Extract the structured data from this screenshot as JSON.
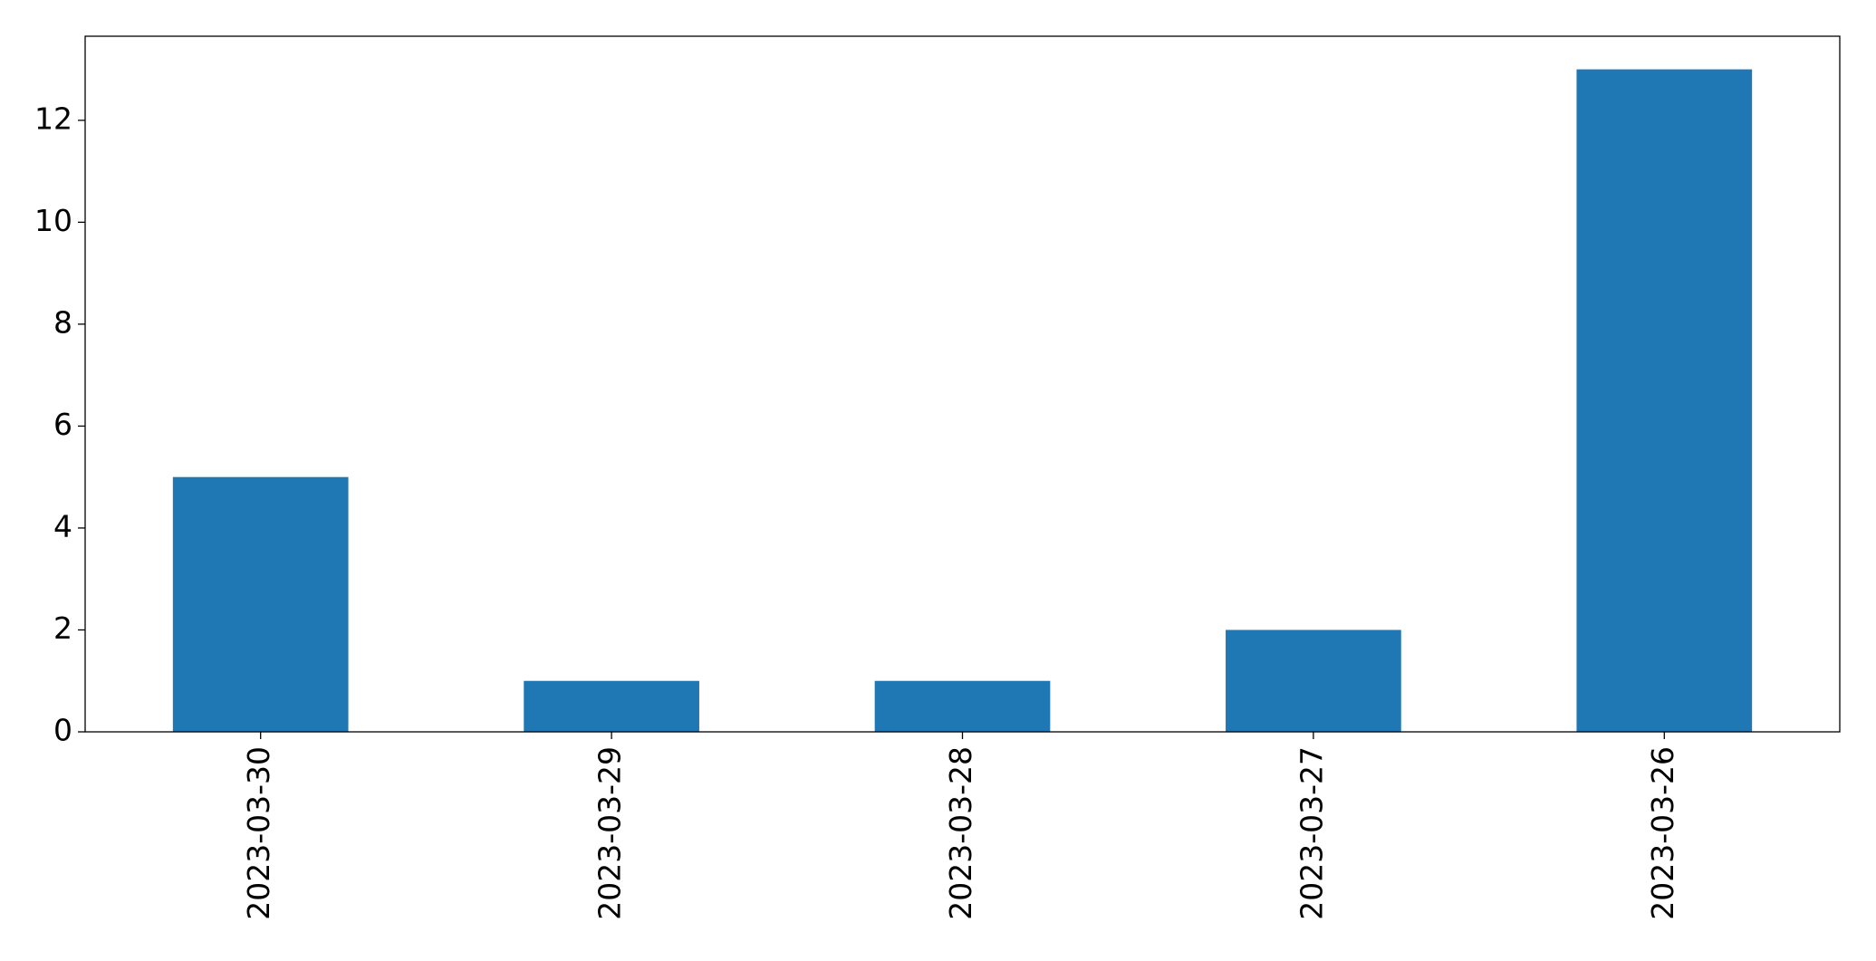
{
  "chart_data": {
    "type": "bar",
    "categories": [
      "2023-03-30",
      "2023-03-29",
      "2023-03-28",
      "2023-03-27",
      "2023-03-26"
    ],
    "values": [
      5,
      1,
      1,
      2,
      13
    ],
    "color": "#1f77b4",
    "ylim": [
      0,
      13.65
    ],
    "yticks": [
      0,
      2,
      4,
      6,
      8,
      10,
      12
    ],
    "grid": false
  }
}
